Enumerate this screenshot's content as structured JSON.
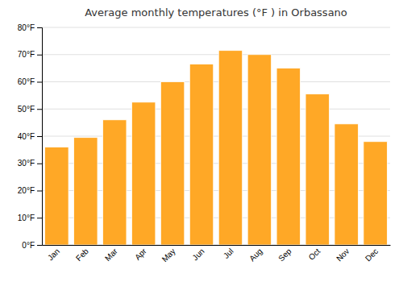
{
  "chart_data": {
    "type": "bar",
    "title": "Average monthly temperatures (°F ) in Orbassano",
    "categories": [
      "Jan",
      "Feb",
      "Mar",
      "Apr",
      "May",
      "Jun",
      "Jul",
      "Aug",
      "Sep",
      "Oct",
      "Nov",
      "Dec"
    ],
    "values": [
      36,
      39.5,
      46,
      52.5,
      60,
      66.5,
      71.5,
      70,
      65,
      55.5,
      44.5,
      38
    ],
    "color": "#FFA826",
    "ylim": [
      0,
      80
    ],
    "yticks": [
      {
        "value": 0,
        "label": "0°F"
      },
      {
        "value": 10,
        "label": "10°F"
      },
      {
        "value": 20,
        "label": "20°F"
      },
      {
        "value": 30,
        "label": "30°F"
      },
      {
        "value": 40,
        "label": "40°F"
      },
      {
        "value": 50,
        "label": "50°F"
      },
      {
        "value": 60,
        "label": "60°F"
      },
      {
        "value": 70,
        "label": "70°F"
      },
      {
        "value": 80,
        "label": "80°F"
      }
    ],
    "grid": true
  }
}
